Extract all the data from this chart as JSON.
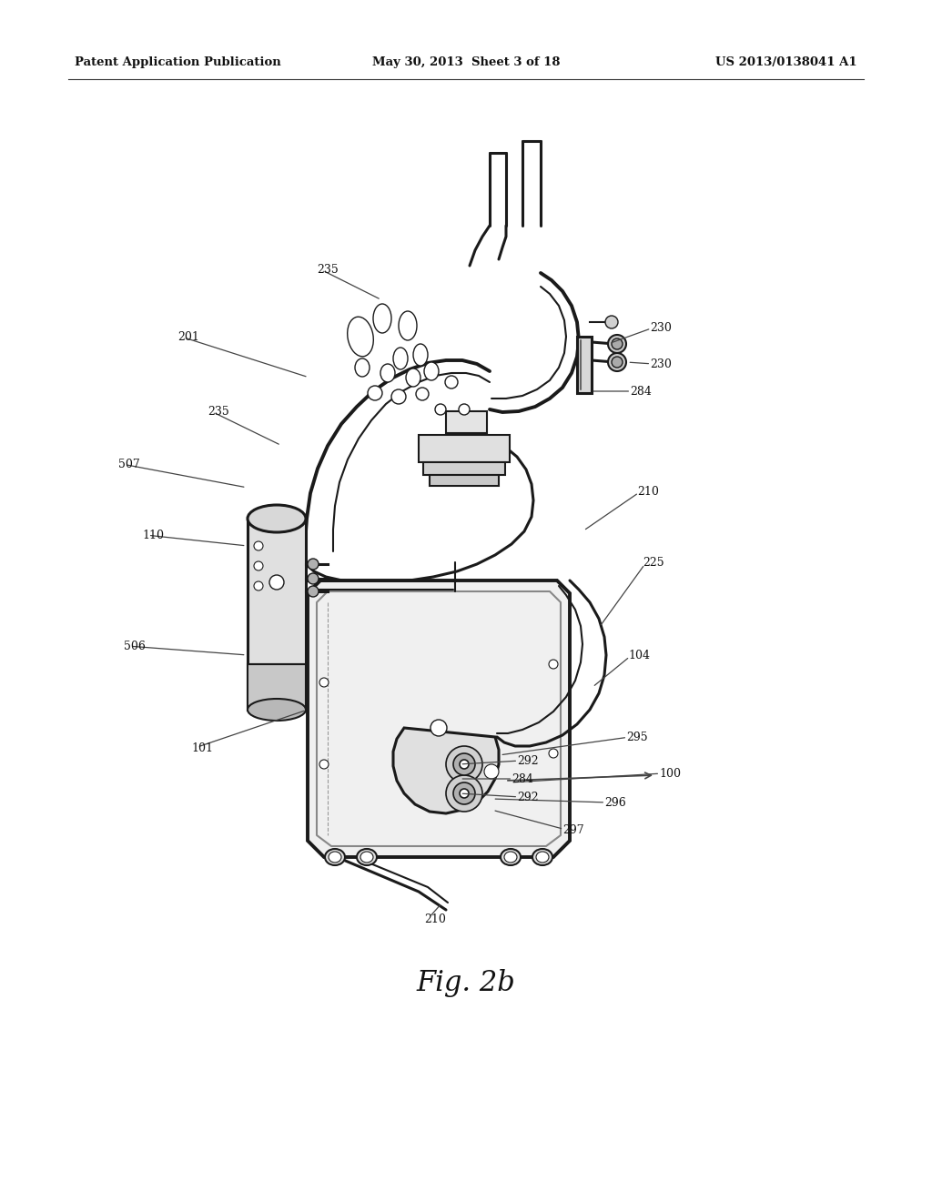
{
  "bg_color": "#ffffff",
  "header_left": "Patent Application Publication",
  "header_mid": "May 30, 2013  Sheet 3 of 18",
  "header_right": "US 2013/0138041 A1",
  "figure_label": "Fig. 2b",
  "line_color": "#1a1a1a",
  "label_fontsize": 9.0,
  "fig_label_fontsize": 22
}
